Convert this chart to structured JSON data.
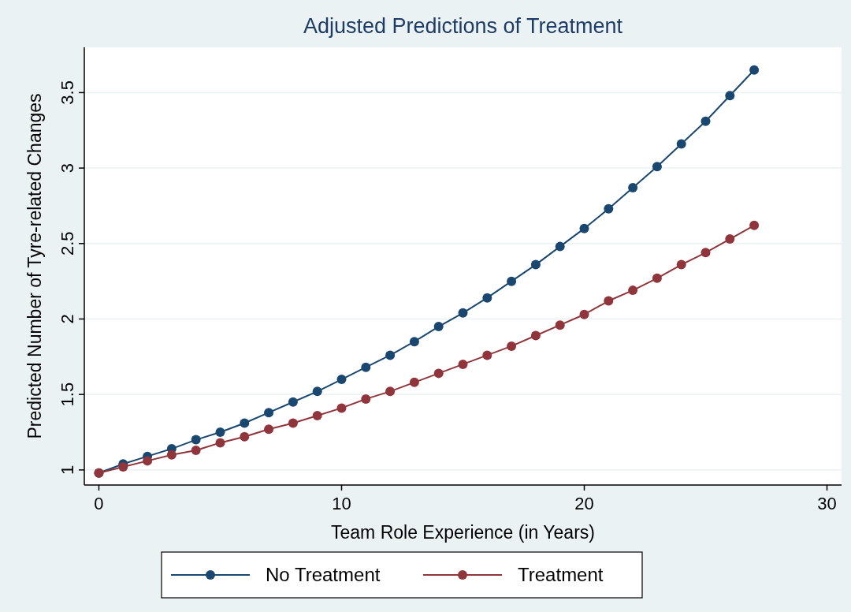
{
  "chart_data": {
    "type": "line",
    "title": "Adjusted Predictions of Treatment",
    "xlabel": "Team Role Experience (in Years)",
    "ylabel": "Predicted Number of Tyre-related Changes",
    "x": [
      0,
      1,
      2,
      3,
      4,
      5,
      6,
      7,
      8,
      9,
      10,
      11,
      12,
      13,
      14,
      15,
      16,
      17,
      18,
      19,
      20,
      21,
      22,
      23,
      24,
      25,
      26,
      27
    ],
    "series": [
      {
        "name": "No Treatment",
        "color": "#1a476f",
        "values": [
          0.98,
          1.04,
          1.09,
          1.14,
          1.2,
          1.25,
          1.31,
          1.38,
          1.45,
          1.52,
          1.6,
          1.68,
          1.76,
          1.85,
          1.95,
          2.04,
          2.14,
          2.25,
          2.36,
          2.48,
          2.6,
          2.73,
          2.87,
          3.01,
          3.16,
          3.31,
          3.48,
          3.65
        ]
      },
      {
        "name": "Treatment",
        "color": "#90353b",
        "values": [
          0.98,
          1.02,
          1.06,
          1.1,
          1.13,
          1.18,
          1.22,
          1.27,
          1.31,
          1.36,
          1.41,
          1.47,
          1.52,
          1.58,
          1.64,
          1.7,
          1.76,
          1.82,
          1.89,
          1.96,
          2.03,
          2.12,
          2.19,
          2.27,
          2.36,
          2.44,
          2.53,
          2.62
        ]
      }
    ],
    "xlim": [
      -0.6,
      30.6
    ],
    "ylim": [
      0.9,
      3.8
    ],
    "xticks": [
      0,
      10,
      20,
      30
    ],
    "yticks": [
      1,
      1.5,
      2,
      2.5,
      3,
      3.5
    ],
    "grid": "y",
    "legend": "bottom",
    "marker": "circle",
    "line_style": "solid"
  }
}
